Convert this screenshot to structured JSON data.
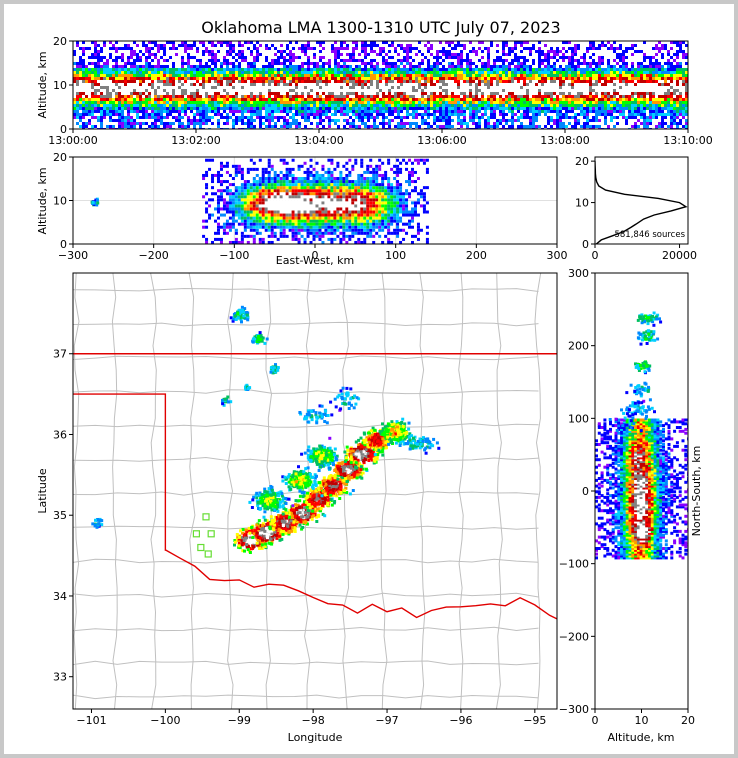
{
  "chart_data": {
    "type": "scatter",
    "title": "Oklahoma LMA 1300-1310 UTC July 07, 2023",
    "time_panel": {
      "ylabel": "Altitude, km",
      "xticks": [
        "13:00:00",
        "13:02:00",
        "13:04:00",
        "13:06:00",
        "13:08:00",
        "13:10:00"
      ],
      "yticks": [
        "0",
        "10",
        "20"
      ],
      "ylim": [
        0,
        20
      ]
    },
    "ew_panel": {
      "xlabel": "East-West, km",
      "ylabel": "Altitude, km",
      "xticks": [
        "−300",
        "−200",
        "−100",
        "0",
        "100",
        "200",
        "300"
      ],
      "yticks": [
        "0",
        "10",
        "20"
      ],
      "xlim": [
        -300,
        300
      ],
      "ylim": [
        0,
        20
      ]
    },
    "hist_panel": {
      "annotation": "581,846 sources",
      "xticks": [
        "0",
        "20000"
      ],
      "yticks": [
        "0",
        "10",
        "20"
      ],
      "altitude": [
        0,
        1,
        2,
        3,
        4,
        5,
        6,
        7,
        8,
        9,
        10,
        11,
        12,
        13,
        14,
        15,
        16,
        17,
        18,
        19,
        20
      ],
      "counts": [
        300,
        1500,
        4200,
        6800,
        8500,
        10000,
        11500,
        14000,
        18000,
        21500,
        20000,
        15000,
        7000,
        2500,
        900,
        400,
        200,
        100,
        60,
        30,
        10
      ]
    },
    "map_panel": {
      "xlabel": "Longitude",
      "ylabel": "Latitude",
      "xticks": [
        "−101",
        "−100",
        "−99",
        "−98",
        "−97",
        "−96",
        "−95"
      ],
      "yticks": [
        "33",
        "34",
        "35",
        "36",
        "37"
      ],
      "xlim": [
        -101.25,
        -94.7
      ],
      "ylim": [
        32.6,
        38.0
      ]
    },
    "ns_panel": {
      "xlabel": "Altitude, km",
      "ylabel": "North-South, km",
      "xticks": [
        "0",
        "10",
        "20"
      ],
      "yticks": [
        "−300",
        "−200",
        "−100",
        "0",
        "100",
        "200",
        "300"
      ],
      "xlim": [
        0,
        20
      ],
      "ylim": [
        -300,
        300
      ]
    },
    "colors": {
      "density_scale": [
        "#8a00ff",
        "#0000ff",
        "#0088ff",
        "#00d0ff",
        "#00c060",
        "#00ff00",
        "#ffff00",
        "#ff9900",
        "#ff0000",
        "#c00000",
        "#808080",
        "#ffffff"
      ],
      "state_border": "#e00000",
      "county_lines": "#c0c0c0"
    }
  }
}
